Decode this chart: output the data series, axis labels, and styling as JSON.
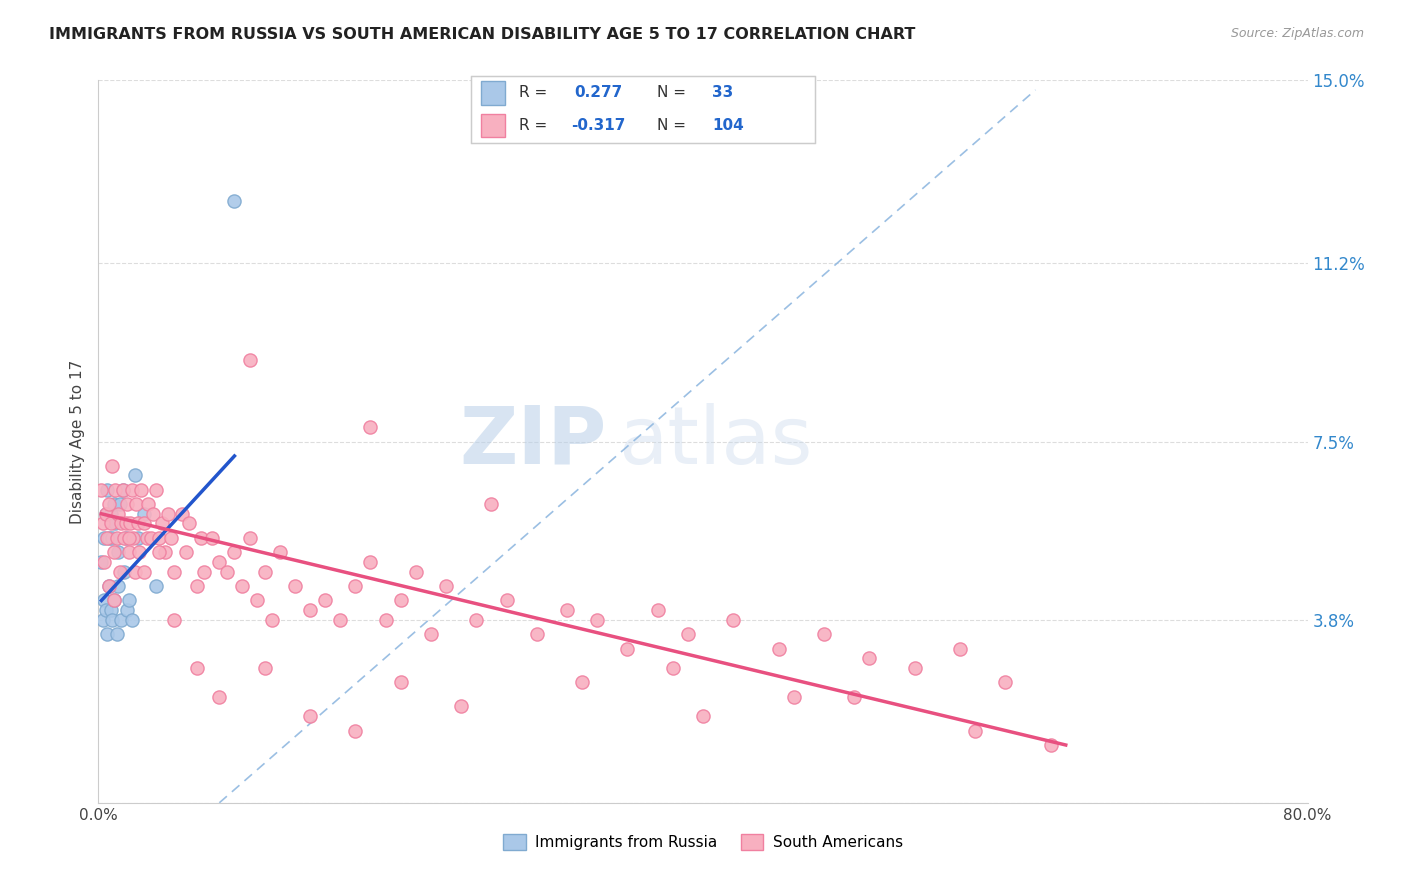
{
  "title": "IMMIGRANTS FROM RUSSIA VS SOUTH AMERICAN DISABILITY AGE 5 TO 17 CORRELATION CHART",
  "source": "Source: ZipAtlas.com",
  "ylabel": "Disability Age 5 to 17",
  "xlim": [
    0.0,
    0.8
  ],
  "ylim": [
    0.0,
    0.15
  ],
  "yticks": [
    0.0,
    0.038,
    0.075,
    0.112,
    0.15
  ],
  "ytick_labels": [
    "",
    "3.8%",
    "7.5%",
    "11.2%",
    "15.0%"
  ],
  "xticks": [
    0.0,
    0.16,
    0.32,
    0.48,
    0.64,
    0.8
  ],
  "xtick_labels": [
    "0.0%",
    "",
    "",
    "",
    "",
    "80.0%"
  ],
  "russia_color": "#aac8e8",
  "russia_edge": "#80aad0",
  "south_color": "#f8b0c0",
  "south_edge": "#f080a0",
  "russia_line_color": "#2255cc",
  "south_line_color": "#e85080",
  "diag_line_color": "#90b8e0",
  "watermark_zip": "ZIP",
  "watermark_atlas": "atlas",
  "russia_points_x": [
    0.002,
    0.003,
    0.004,
    0.004,
    0.005,
    0.005,
    0.006,
    0.006,
    0.007,
    0.007,
    0.008,
    0.008,
    0.009,
    0.009,
    0.01,
    0.01,
    0.011,
    0.012,
    0.013,
    0.013,
    0.014,
    0.015,
    0.016,
    0.017,
    0.018,
    0.019,
    0.02,
    0.022,
    0.024,
    0.026,
    0.03,
    0.038,
    0.09
  ],
  "russia_points_y": [
    0.05,
    0.038,
    0.055,
    0.042,
    0.06,
    0.04,
    0.065,
    0.035,
    0.055,
    0.045,
    0.06,
    0.04,
    0.055,
    0.038,
    0.062,
    0.042,
    0.058,
    0.035,
    0.052,
    0.045,
    0.062,
    0.038,
    0.065,
    0.048,
    0.055,
    0.04,
    0.042,
    0.038,
    0.068,
    0.055,
    0.06,
    0.045,
    0.125
  ],
  "south_points_x": [
    0.002,
    0.003,
    0.004,
    0.005,
    0.006,
    0.007,
    0.007,
    0.008,
    0.009,
    0.01,
    0.01,
    0.011,
    0.012,
    0.013,
    0.014,
    0.015,
    0.016,
    0.017,
    0.018,
    0.019,
    0.02,
    0.021,
    0.022,
    0.023,
    0.024,
    0.025,
    0.026,
    0.027,
    0.028,
    0.03,
    0.032,
    0.033,
    0.035,
    0.036,
    0.038,
    0.04,
    0.042,
    0.044,
    0.046,
    0.048,
    0.05,
    0.055,
    0.058,
    0.06,
    0.065,
    0.068,
    0.07,
    0.075,
    0.08,
    0.085,
    0.09,
    0.095,
    0.1,
    0.105,
    0.11,
    0.115,
    0.12,
    0.13,
    0.14,
    0.15,
    0.16,
    0.17,
    0.18,
    0.19,
    0.2,
    0.21,
    0.22,
    0.23,
    0.25,
    0.27,
    0.29,
    0.31,
    0.33,
    0.35,
    0.37,
    0.39,
    0.42,
    0.45,
    0.48,
    0.51,
    0.54,
    0.57,
    0.6,
    0.1,
    0.18,
    0.26,
    0.38,
    0.46,
    0.02,
    0.03,
    0.04,
    0.05,
    0.065,
    0.08,
    0.11,
    0.14,
    0.17,
    0.2,
    0.24,
    0.32,
    0.4,
    0.5,
    0.58,
    0.63
  ],
  "south_points_y": [
    0.065,
    0.058,
    0.05,
    0.06,
    0.055,
    0.062,
    0.045,
    0.058,
    0.07,
    0.052,
    0.042,
    0.065,
    0.055,
    0.06,
    0.048,
    0.058,
    0.065,
    0.055,
    0.058,
    0.062,
    0.052,
    0.058,
    0.065,
    0.055,
    0.048,
    0.062,
    0.058,
    0.052,
    0.065,
    0.058,
    0.055,
    0.062,
    0.055,
    0.06,
    0.065,
    0.055,
    0.058,
    0.052,
    0.06,
    0.055,
    0.048,
    0.06,
    0.052,
    0.058,
    0.045,
    0.055,
    0.048,
    0.055,
    0.05,
    0.048,
    0.052,
    0.045,
    0.055,
    0.042,
    0.048,
    0.038,
    0.052,
    0.045,
    0.04,
    0.042,
    0.038,
    0.045,
    0.05,
    0.038,
    0.042,
    0.048,
    0.035,
    0.045,
    0.038,
    0.042,
    0.035,
    0.04,
    0.038,
    0.032,
    0.04,
    0.035,
    0.038,
    0.032,
    0.035,
    0.03,
    0.028,
    0.032,
    0.025,
    0.092,
    0.078,
    0.062,
    0.028,
    0.022,
    0.055,
    0.048,
    0.052,
    0.038,
    0.028,
    0.022,
    0.028,
    0.018,
    0.015,
    0.025,
    0.02,
    0.025,
    0.018,
    0.022,
    0.015,
    0.012
  ],
  "russia_line_x": [
    0.002,
    0.09
  ],
  "russia_line_y_start": 0.042,
  "russia_line_y_end": 0.072,
  "south_line_x": [
    0.002,
    0.64
  ],
  "south_line_y_start": 0.06,
  "south_line_y_end": 0.012,
  "diag_line_x1": 0.08,
  "diag_line_y1": 0.0,
  "diag_line_x2": 0.62,
  "diag_line_y2": 0.148
}
